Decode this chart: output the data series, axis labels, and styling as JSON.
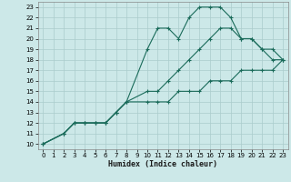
{
  "title": "",
  "xlabel": "Humidex (Indice chaleur)",
  "bg_color": "#cce8e8",
  "line_color": "#1a6b5a",
  "grid_color": "#aacccc",
  "xlim": [
    -0.5,
    23.5
  ],
  "ylim": [
    9.5,
    23.5
  ],
  "xticks": [
    0,
    1,
    2,
    3,
    4,
    5,
    6,
    7,
    8,
    9,
    10,
    11,
    12,
    13,
    14,
    15,
    16,
    17,
    18,
    19,
    20,
    21,
    22,
    23
  ],
  "yticks": [
    10,
    11,
    12,
    13,
    14,
    15,
    16,
    17,
    18,
    19,
    20,
    21,
    22,
    23
  ],
  "series": [
    {
      "x": [
        0,
        2,
        3,
        4,
        5,
        6,
        7,
        8,
        10,
        11,
        12,
        13,
        14,
        15,
        16,
        17,
        18,
        19,
        20,
        21,
        22,
        23
      ],
      "y": [
        10,
        11,
        12,
        12,
        12,
        12,
        13,
        14,
        19,
        21,
        21,
        20,
        22,
        23,
        23,
        23,
        22,
        20,
        20,
        19,
        18,
        18
      ]
    },
    {
      "x": [
        0,
        2,
        3,
        4,
        5,
        6,
        7,
        8,
        10,
        11,
        12,
        13,
        14,
        15,
        16,
        17,
        18,
        19,
        20,
        21,
        22,
        23
      ],
      "y": [
        10,
        11,
        12,
        12,
        12,
        12,
        13,
        14,
        15,
        15,
        16,
        17,
        18,
        19,
        20,
        21,
        21,
        20,
        20,
        19,
        19,
        18
      ]
    },
    {
      "x": [
        0,
        2,
        3,
        4,
        5,
        6,
        7,
        8,
        10,
        11,
        12,
        13,
        14,
        15,
        16,
        17,
        18,
        19,
        20,
        21,
        22,
        23
      ],
      "y": [
        10,
        11,
        12,
        12,
        12,
        12,
        13,
        14,
        14,
        14,
        14,
        15,
        15,
        15,
        16,
        16,
        16,
        17,
        17,
        17,
        17,
        18
      ]
    }
  ]
}
